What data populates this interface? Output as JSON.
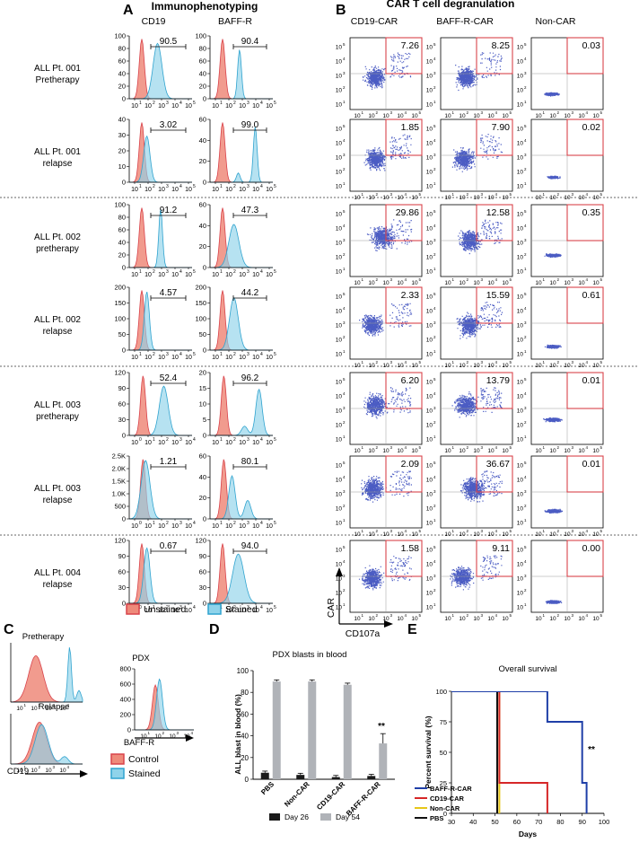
{
  "panel_letters": {
    "a": "A",
    "b": "B",
    "c": "C",
    "d": "D",
    "e": "E"
  },
  "titles": {
    "immuno": "Immunophenotyping",
    "degran": "CAR T cell degranulation"
  },
  "col_heads": {
    "cd19": "CD19",
    "baffr": "BAFF-R",
    "cd19car": "CD19-CAR",
    "baffrcar": "BAFF-R-CAR",
    "noncar": "Non-CAR"
  },
  "rows": [
    {
      "label1": "ALL Pt. 001",
      "label2": "Pretherapy",
      "cd19": "90.5",
      "baffr": "90.4",
      "dot": [
        "7.26",
        "8.25",
        "0.03"
      ]
    },
    {
      "label1": "ALL Pt. 001",
      "label2": "relapse",
      "cd19": "3.02",
      "baffr": "99.0",
      "dot": [
        "1.85",
        "7.90",
        "0.02"
      ]
    },
    {
      "label1": "ALL Pt. 002",
      "label2": "pretherapy",
      "cd19": "91.2",
      "baffr": "47.3",
      "dot": [
        "29.86",
        "12.58",
        "0.35"
      ]
    },
    {
      "label1": "ALL Pt. 002",
      "label2": "relapse",
      "cd19": "4.57",
      "baffr": "44.2",
      "dot": [
        "2.33",
        "15.59",
        "0.61"
      ]
    },
    {
      "label1": "ALL Pt. 003",
      "label2": "pretherapy",
      "cd19": "52.4",
      "baffr": "96.2",
      "dot": [
        "6.20",
        "13.79",
        "0.01"
      ]
    },
    {
      "label1": "ALL Pt. 003",
      "label2": "relapse",
      "cd19": "1.21",
      "baffr": "80.1",
      "dot": [
        "2.09",
        "36.67",
        "0.01"
      ]
    },
    {
      "label1": "ALL Pt. 004",
      "label2": "relapse",
      "cd19": "0.67",
      "baffr": "94.0",
      "dot": [
        "1.58",
        "9.11",
        "0.00"
      ]
    }
  ],
  "axis_labels": {
    "car": "CAR",
    "cd107a": "CD107a"
  },
  "legend_ab": {
    "unstained": "Unstained",
    "stained": "Stained"
  },
  "panel_c": {
    "pretherapy": "Pretherapy",
    "relapse": "Relapse",
    "cd19": "CD19",
    "pdx": "PDX",
    "baffr": "BAFF-R",
    "control": "Control",
    "stained": "Stained"
  },
  "colors": {
    "unstained": "#ee8a7a",
    "stained": "#8fd3ea",
    "dots": "#2b3fb8",
    "gate": "#d9434b",
    "day26": "#1a1a1a",
    "day54": "#b0b3b8"
  },
  "chart_data": [
    {
      "type": "bar",
      "title": "PDX blasts in blood",
      "ylabel": "ALL blast in blood (%)",
      "categories": [
        "PBS",
        "Non-CAR",
        "CD19-CAR",
        "BAFF-R-CAR"
      ],
      "ylim": [
        0,
        100
      ],
      "yticks": [
        "0",
        "20",
        "40",
        "60",
        "80",
        "100"
      ],
      "series": [
        {
          "name": "Day 26",
          "values": [
            6,
            4,
            2,
            3
          ]
        },
        {
          "name": "Day 54",
          "values": [
            90,
            90,
            87,
            33
          ]
        }
      ],
      "annotation": "**"
    },
    {
      "type": "line",
      "title": "Overall survival",
      "xlabel": "Days",
      "ylabel": "Percent survival (%)",
      "xlim": [
        30,
        100
      ],
      "ylim": [
        0,
        100
      ],
      "xticks": [
        "30",
        "40",
        "50",
        "60",
        "70",
        "80",
        "90",
        "100"
      ],
      "yticks": [
        "0",
        "25",
        "50",
        "75",
        "100"
      ],
      "series": [
        {
          "name": "BAFF-R-CAR",
          "color": "#1f3fa8",
          "x": [
            30,
            74,
            74,
            90,
            90,
            92,
            92
          ],
          "y": [
            100,
            100,
            75,
            75,
            25,
            25,
            0
          ]
        },
        {
          "name": "CD19-CAR",
          "color": "#d62728",
          "x": [
            30,
            52,
            52,
            74,
            74
          ],
          "y": [
            100,
            100,
            25,
            25,
            0
          ]
        },
        {
          "name": "Non-CAR",
          "color": "#e6c619",
          "x": [
            30,
            52,
            52
          ],
          "y": [
            100,
            100,
            0
          ]
        },
        {
          "name": "PBS",
          "color": "#111111",
          "x": [
            30,
            51,
            51
          ],
          "y": [
            100,
            100,
            0
          ]
        }
      ],
      "annotation": "**"
    }
  ]
}
